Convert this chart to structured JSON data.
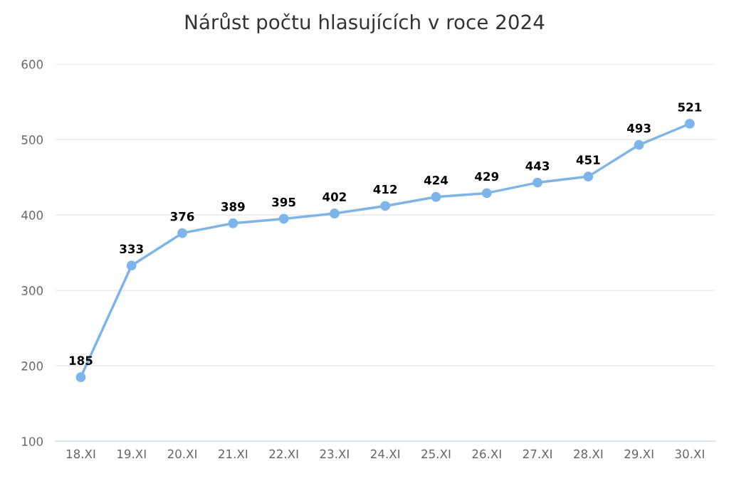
{
  "chart_data": {
    "type": "line",
    "title": "Nárůst počtu hlasujících v roce 2024",
    "categories": [
      "18.XI",
      "19.XI",
      "20.XI",
      "21.XI",
      "22.XI",
      "23.XI",
      "24.XI",
      "25.XI",
      "26.XI",
      "27.XI",
      "28.XI",
      "29.XI",
      "30.XI"
    ],
    "series": [
      {
        "color": "#7cb5ec",
        "values": [
          185,
          333,
          376,
          389,
          395,
          402,
          412,
          424,
          429,
          443,
          451,
          493,
          521
        ]
      }
    ],
    "ylim": [
      100,
      600
    ],
    "yticks": [
      100,
      200,
      300,
      400,
      500,
      600
    ],
    "grid": "y",
    "marker": "circle",
    "line_style": "solid",
    "data_labels": true
  }
}
